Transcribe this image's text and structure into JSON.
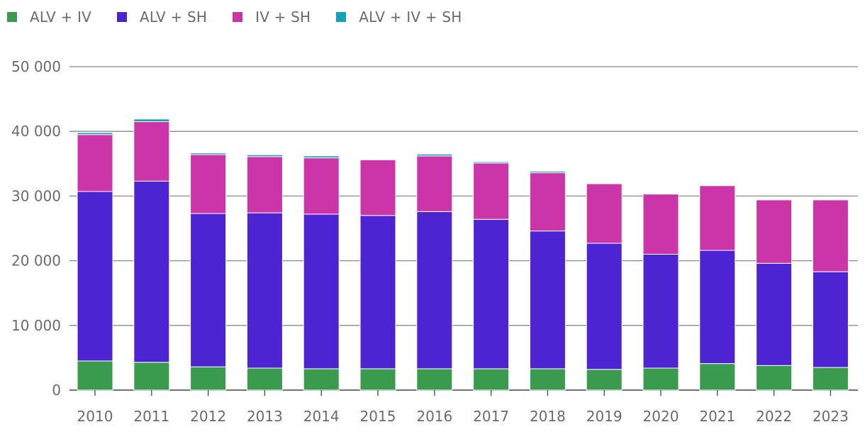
{
  "chart_data": {
    "type": "bar",
    "stacked": true,
    "title": "",
    "xlabel": "",
    "ylabel": "",
    "ylim": [
      0,
      50000
    ],
    "yticks": [
      0,
      10000,
      20000,
      30000,
      40000,
      50000
    ],
    "ytick_labels": [
      "0",
      "10 000",
      "20 000",
      "30 000",
      "40 000",
      "50 000"
    ],
    "grid": true,
    "legend_position": "top-left",
    "categories": [
      "2010",
      "2011",
      "2012",
      "2013",
      "2014",
      "2015",
      "2016",
      "2017",
      "2018",
      "2019",
      "2020",
      "2021",
      "2022",
      "2023"
    ],
    "series": [
      {
        "name": "ALV + IV",
        "color": "#3a9a4e",
        "values": [
          4500,
          4300,
          3600,
          3400,
          3300,
          3300,
          3300,
          3300,
          3300,
          3200,
          3400,
          4100,
          3800,
          3500
        ]
      },
      {
        "name": "ALV + SH",
        "color": "#4c24d2",
        "values": [
          26200,
          28000,
          23700,
          24000,
          23900,
          23700,
          24300,
          23100,
          21300,
          19500,
          17600,
          17500,
          15800,
          14800
        ]
      },
      {
        "name": "IV + SH",
        "color": "#cc35a8",
        "values": [
          8800,
          9200,
          9100,
          8700,
          8700,
          8600,
          8600,
          8700,
          9000,
          9200,
          9300,
          10000,
          9800,
          11100
        ]
      },
      {
        "name": "ALV + IV + SH",
        "color": "#11a1b8",
        "values": [
          300,
          400,
          250,
          280,
          300,
          0,
          280,
          200,
          230,
          0,
          0,
          0,
          0,
          0
        ]
      }
    ]
  }
}
